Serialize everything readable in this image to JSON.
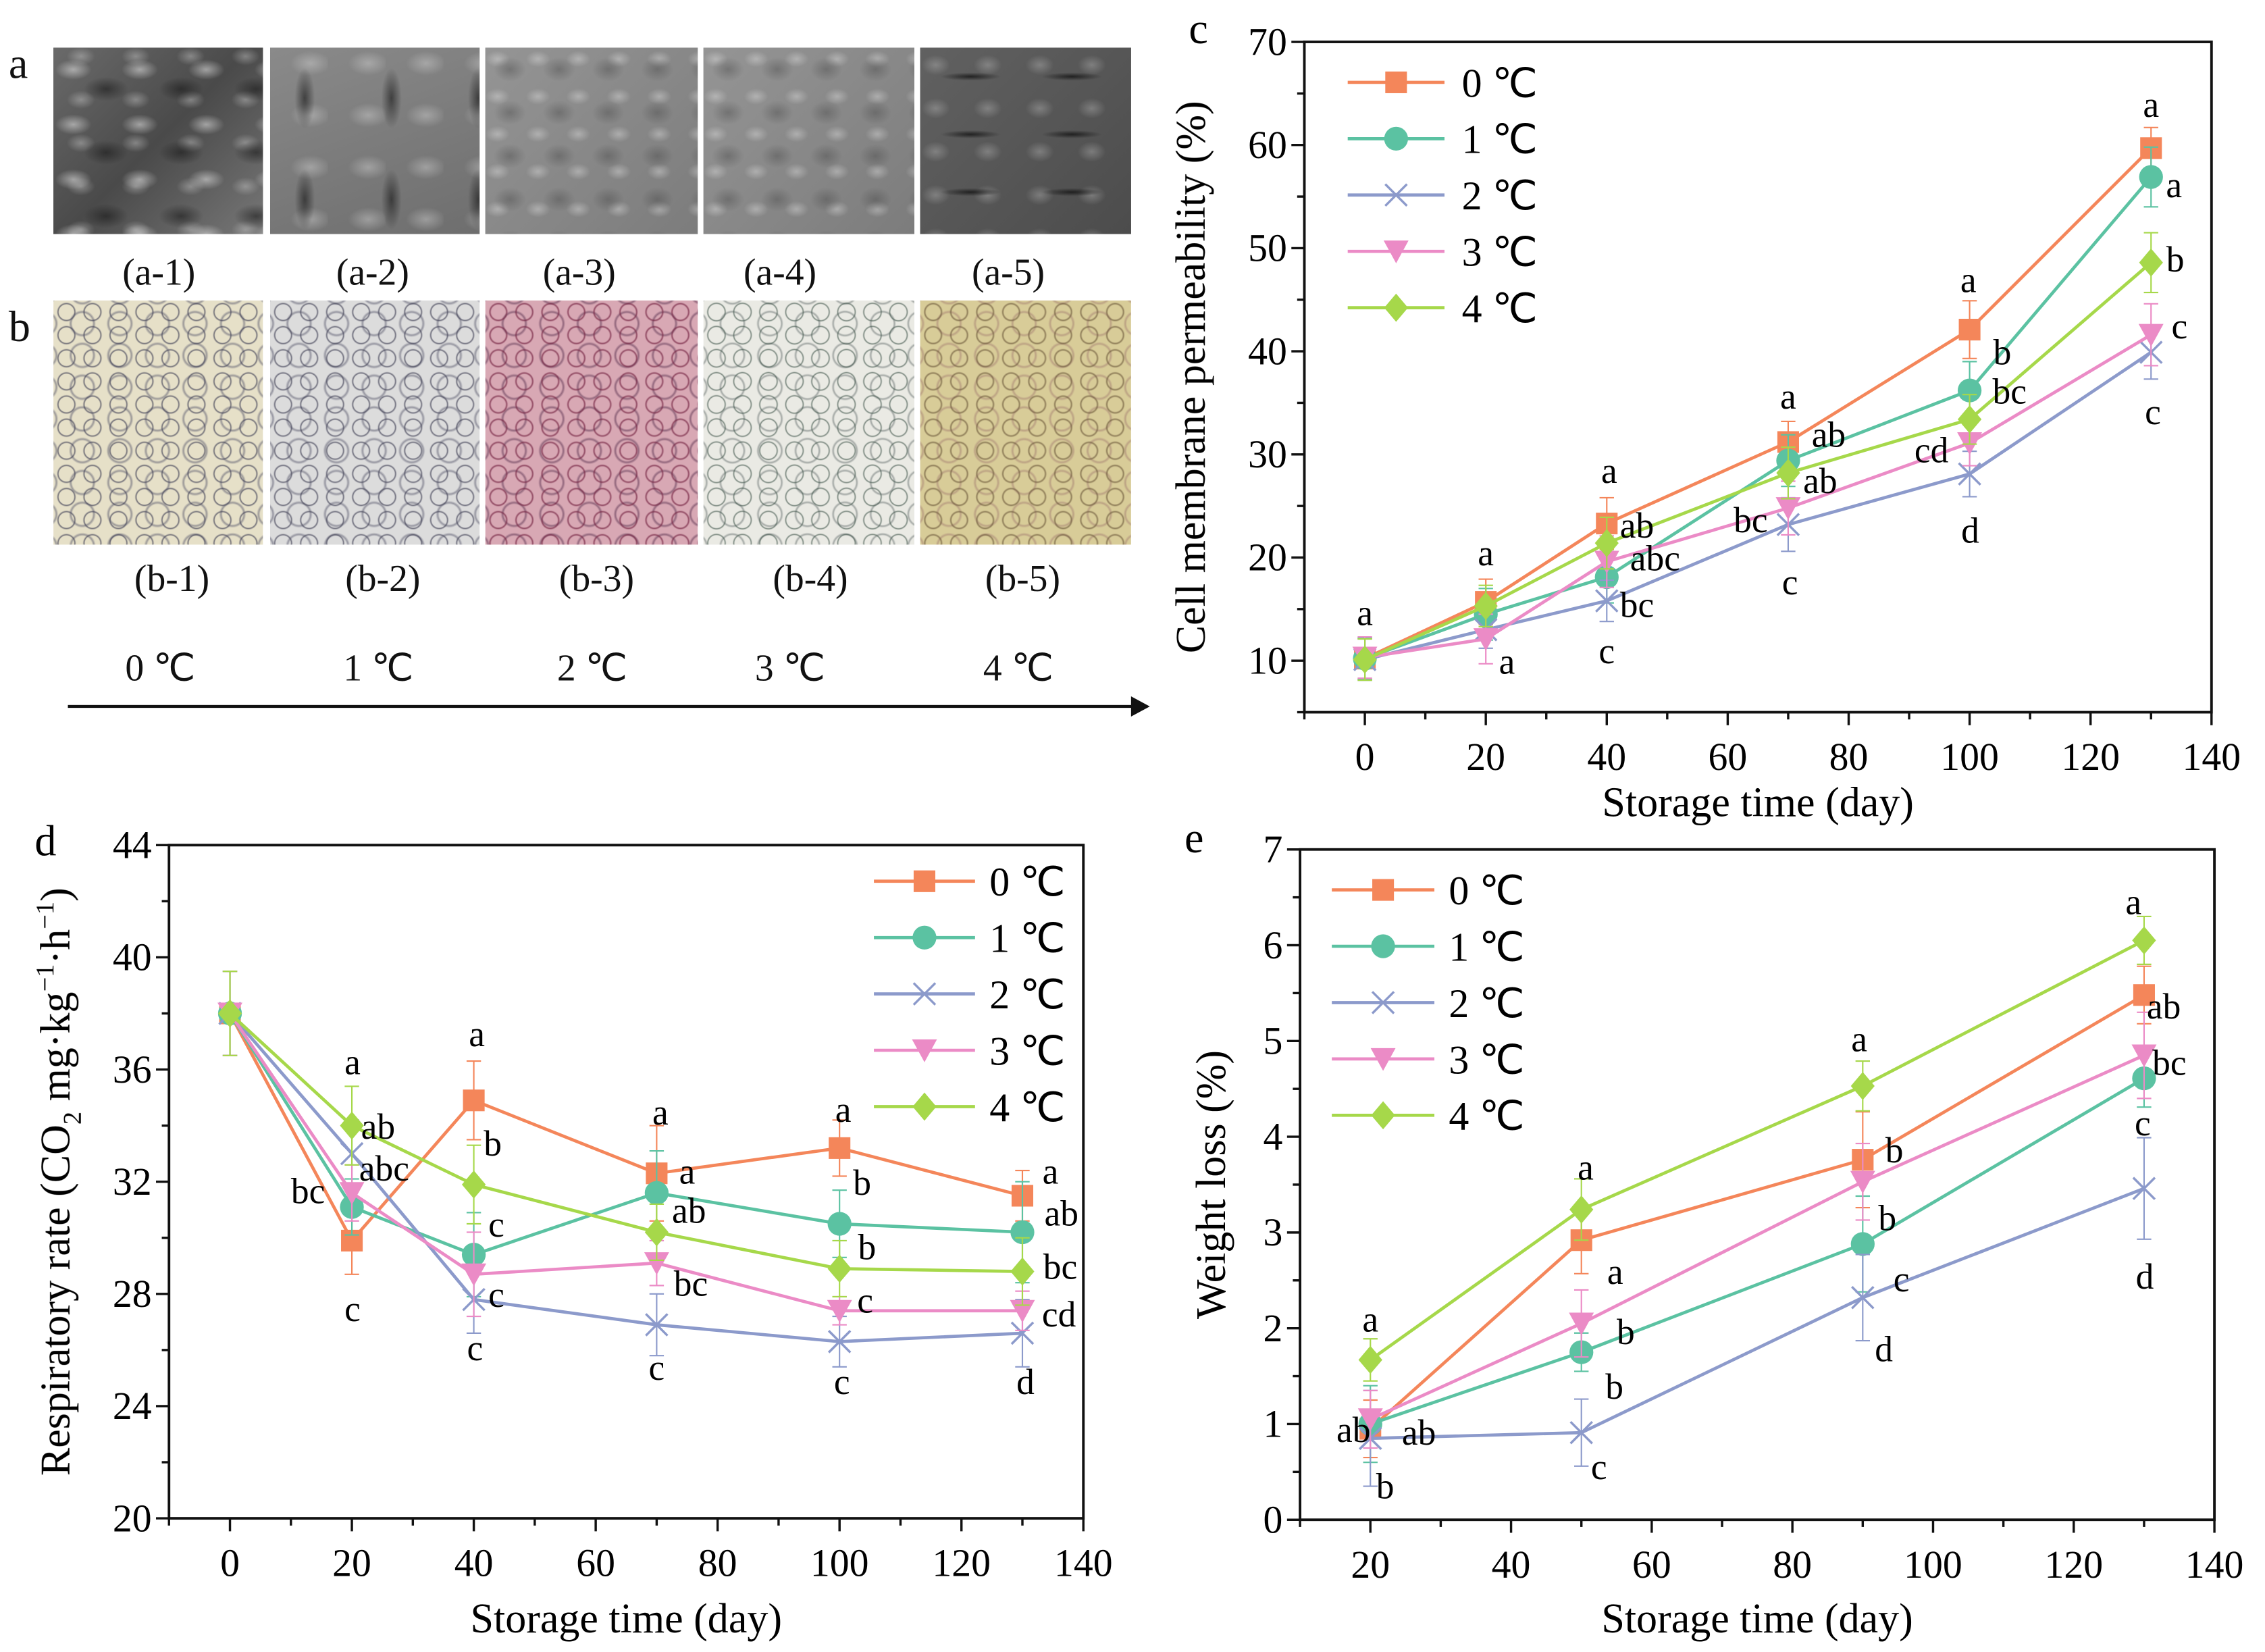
{
  "panel_a": {
    "letter": "a",
    "captions": [
      "(a-1)",
      "(a-2)",
      "(a-3)",
      "(a-4)",
      "(a-5)"
    ]
  },
  "panel_b": {
    "letter": "b",
    "captions": [
      "(b-1)",
      "(b-2)",
      "(b-3)",
      "(b-4)",
      "(b-5)"
    ],
    "temperatures": [
      "0 ℃",
      "1 ℃",
      "2 ℃",
      "3 ℃",
      "4 ℃"
    ]
  },
  "colors": {
    "0 ℃": "#F4865A",
    "1 ℃": "#5BC2A2",
    "2 ℃": "#8C9ACB",
    "3 ℃": "#EB8BC6",
    "4 ℃": "#A6D84A"
  },
  "chart_data": [
    {
      "panel": "c",
      "type": "line",
      "xlabel": "Storage time (day)",
      "ylabel": "Cell membrane permeability (%)",
      "xlim": [
        -10,
        140
      ],
      "ylim": [
        5,
        70
      ],
      "xticks": [
        0,
        20,
        40,
        60,
        80,
        100,
        120,
        140
      ],
      "yticks": [
        10,
        20,
        30,
        40,
        50,
        60,
        70
      ],
      "grid": false,
      "legend": "top-left",
      "x": [
        0,
        20,
        40,
        70,
        100,
        130
      ],
      "series": [
        {
          "name": "0 ℃",
          "marker": "square",
          "values": [
            10.2,
            15.7,
            23.3,
            31.2,
            42.1,
            59.7
          ],
          "error": [
            2,
            2.2,
            2.5,
            2,
            2.8,
            2
          ]
        },
        {
          "name": "1 ℃",
          "marker": "circle",
          "values": [
            10.2,
            14.5,
            18.1,
            29.4,
            36.2,
            56.9
          ],
          "error": [
            2,
            2.5,
            2.5,
            2.5,
            2.8,
            2.9
          ]
        },
        {
          "name": "2 ℃",
          "marker": "x",
          "values": [
            10.1,
            13.0,
            15.8,
            23.2,
            28.1,
            39.9
          ],
          "error": [
            2,
            1.8,
            2,
            2.6,
            2.2,
            2.6
          ]
        },
        {
          "name": "3 ℃",
          "marker": "triangle-down",
          "values": [
            10.3,
            12.1,
            19.6,
            24.8,
            31.1,
            41.6
          ],
          "error": [
            2,
            2.4,
            2.5,
            2.6,
            2.2,
            3
          ]
        },
        {
          "name": "4 ℃",
          "marker": "diamond",
          "values": [
            10.1,
            15.3,
            21.4,
            28.2,
            33.4,
            48.6
          ],
          "error": [
            2,
            2,
            2.5,
            2.5,
            2.4,
            2.9
          ]
        }
      ],
      "annotations": [
        {
          "x": 0,
          "y": 14.7,
          "text": "a"
        },
        {
          "x": 20,
          "y": 20.5,
          "text": "a"
        },
        {
          "x": 23.5,
          "y": 10,
          "text": "a"
        },
        {
          "x": 40.4,
          "y": 28.5,
          "text": "a"
        },
        {
          "x": 45,
          "y": 23.2,
          "text": "ab"
        },
        {
          "x": 48,
          "y": 20,
          "text": "abc"
        },
        {
          "x": 45,
          "y": 15.5,
          "text": "bc"
        },
        {
          "x": 40,
          "y": 11,
          "text": "c"
        },
        {
          "x": 70,
          "y": 35.7,
          "text": "a"
        },
        {
          "x": 76.7,
          "y": 32,
          "text": "ab"
        },
        {
          "x": 75.3,
          "y": 27.5,
          "text": "ab"
        },
        {
          "x": 63.8,
          "y": 23.7,
          "text": "bc"
        },
        {
          "x": 70.3,
          "y": 17.7,
          "text": "c"
        },
        {
          "x": 99.8,
          "y": 47,
          "text": "a"
        },
        {
          "x": 105.4,
          "y": 40,
          "text": "b"
        },
        {
          "x": 106.6,
          "y": 36.2,
          "text": "bc"
        },
        {
          "x": 93.7,
          "y": 30.5,
          "text": "cd"
        },
        {
          "x": 100.1,
          "y": 22.7,
          "text": "d"
        },
        {
          "x": 130,
          "y": 64,
          "text": "a"
        },
        {
          "x": 133.8,
          "y": 56.2,
          "text": "a"
        },
        {
          "x": 134,
          "y": 49,
          "text": "b"
        },
        {
          "x": 134.7,
          "y": 42.5,
          "text": "c"
        },
        {
          "x": 130.3,
          "y": 34.2,
          "text": "c"
        }
      ]
    },
    {
      "panel": "d",
      "type": "line",
      "xlabel": "Storage time (day)",
      "ylabel_parts": [
        "Respiratory rate (CO",
        "2",
        "  mg·kg",
        "−1",
        "·h",
        "−1",
        ")"
      ],
      "xlim": [
        -10,
        140
      ],
      "ylim": [
        20,
        44
      ],
      "xticks": [
        0,
        20,
        40,
        60,
        80,
        100,
        120,
        140
      ],
      "yticks": [
        20,
        24,
        28,
        32,
        36,
        40,
        44
      ],
      "grid": false,
      "legend": "top-right",
      "x": [
        0,
        20,
        40,
        70,
        100,
        130
      ],
      "series": [
        {
          "name": "0 ℃",
          "marker": "square",
          "values": [
            38.0,
            29.9,
            34.9,
            32.3,
            33.2,
            31.5
          ],
          "error": [
            1.5,
            1.2,
            1.4,
            1.7,
            1,
            0.9
          ]
        },
        {
          "name": "1 ℃",
          "marker": "circle",
          "values": [
            38.0,
            31.1,
            29.4,
            31.6,
            30.5,
            30.2
          ],
          "error": [
            1.5,
            1,
            1.5,
            1.5,
            1.2,
            1.8
          ]
        },
        {
          "name": "2 ℃",
          "marker": "x",
          "values": [
            38.0,
            33.0,
            27.8,
            26.9,
            26.3,
            26.6
          ],
          "error": [
            1.5,
            1.2,
            1.2,
            1.1,
            0.9,
            1.2
          ]
        },
        {
          "name": "3 ℃",
          "marker": "triangle-down",
          "values": [
            38.0,
            31.6,
            28.7,
            29.1,
            27.4,
            27.4
          ],
          "error": [
            1.5,
            1,
            1.5,
            0.8,
            0.5,
            0.7
          ]
        },
        {
          "name": "4 ℃",
          "marker": "diamond",
          "values": [
            38.0,
            34.0,
            31.9,
            30.2,
            28.9,
            28.8
          ],
          "error": [
            1.5,
            1.4,
            1.4,
            1,
            1,
            1.2
          ]
        }
      ],
      "annotations": [
        {
          "x": 20.1,
          "y": 36.3,
          "text": "a"
        },
        {
          "x": 24.3,
          "y": 34.0,
          "text": "ab"
        },
        {
          "x": 25.3,
          "y": 32.5,
          "text": "abc"
        },
        {
          "x": 12.8,
          "y": 31.7,
          "text": "bc"
        },
        {
          "x": 20.1,
          "y": 27.5,
          "text": "c"
        },
        {
          "x": 40.5,
          "y": 37.3,
          "text": "a"
        },
        {
          "x": 43.1,
          "y": 33.4,
          "text": "b"
        },
        {
          "x": 43.7,
          "y": 30.5,
          "text": "c"
        },
        {
          "x": 43.7,
          "y": 28.0,
          "text": "c"
        },
        {
          "x": 40.2,
          "y": 26.1,
          "text": "c"
        },
        {
          "x": 70.6,
          "y": 34.5,
          "text": "a"
        },
        {
          "x": 75,
          "y": 32.4,
          "text": "a"
        },
        {
          "x": 75.3,
          "y": 31.0,
          "text": "ab"
        },
        {
          "x": 75.6,
          "y": 28.4,
          "text": "bc"
        },
        {
          "x": 70,
          "y": 25.4,
          "text": "c"
        },
        {
          "x": 100.6,
          "y": 34.6,
          "text": "a"
        },
        {
          "x": 103.7,
          "y": 32.0,
          "text": "b"
        },
        {
          "x": 104.5,
          "y": 29.7,
          "text": "b"
        },
        {
          "x": 104.2,
          "y": 27.8,
          "text": "c"
        },
        {
          "x": 100.4,
          "y": 24.9,
          "text": "c"
        },
        {
          "x": 134.6,
          "y": 32.4,
          "text": "a"
        },
        {
          "x": 136.4,
          "y": 30.9,
          "text": "ab"
        },
        {
          "x": 136.2,
          "y": 29.0,
          "text": "bc"
        },
        {
          "x": 136,
          "y": 27.3,
          "text": "cd"
        },
        {
          "x": 130.5,
          "y": 24.9,
          "text": "d"
        }
      ]
    },
    {
      "panel": "e",
      "type": "line",
      "xlabel": "Storage time (day)",
      "ylabel": "Weight loss (%)",
      "xlim": [
        10,
        140
      ],
      "ylim": [
        0,
        7
      ],
      "xticks": [
        20,
        40,
        60,
        80,
        100,
        120,
        140
      ],
      "yticks": [
        0,
        1,
        2,
        3,
        4,
        5,
        6,
        7
      ],
      "grid": false,
      "legend": "top-left",
      "x": [
        20,
        50,
        90,
        130
      ],
      "series": [
        {
          "name": "0 ℃",
          "marker": "square",
          "values": [
            0.95,
            2.92,
            3.76,
            5.48
          ],
          "error": [
            0.3,
            0.35,
            0.5,
            0.3
          ]
        },
        {
          "name": "1 ℃",
          "marker": "circle",
          "values": [
            1.0,
            1.75,
            2.88,
            4.61
          ],
          "error": [
            0.4,
            0.2,
            0.5,
            0.3
          ]
        },
        {
          "name": "2 ℃",
          "marker": "x",
          "values": [
            0.85,
            0.91,
            2.32,
            3.46
          ],
          "error": [
            0.5,
            0.35,
            0.45,
            0.53
          ]
        },
        {
          "name": "3 ℃",
          "marker": "triangle-down",
          "values": [
            1.05,
            2.05,
            3.53,
            4.85
          ],
          "error": [
            0.3,
            0.35,
            0.4,
            0.45
          ]
        },
        {
          "name": "4 ℃",
          "marker": "diamond",
          "values": [
            1.67,
            3.24,
            4.53,
            6.05
          ],
          "error": [
            0.22,
            0.32,
            0.26,
            0.25
          ]
        }
      ],
      "annotations": [
        {
          "x": 20,
          "y": 2.1,
          "text": "a"
        },
        {
          "x": 17.6,
          "y": 0.95,
          "text": "ab"
        },
        {
          "x": 26.9,
          "y": 0.92,
          "text": "ab"
        },
        {
          "x": 22.1,
          "y": 0.36,
          "text": "b"
        },
        {
          "x": 50.6,
          "y": 3.69,
          "text": "a"
        },
        {
          "x": 54.8,
          "y": 2.6,
          "text": "a"
        },
        {
          "x": 56.3,
          "y": 1.97,
          "text": "b"
        },
        {
          "x": 54.7,
          "y": 1.4,
          "text": "b"
        },
        {
          "x": 52.5,
          "y": 0.56,
          "text": "c"
        },
        {
          "x": 89.5,
          "y": 5.03,
          "text": "a"
        },
        {
          "x": 94.5,
          "y": 3.87,
          "text": "b"
        },
        {
          "x": 93.5,
          "y": 3.16,
          "text": "b"
        },
        {
          "x": 95.5,
          "y": 2.52,
          "text": "c"
        },
        {
          "x": 93,
          "y": 1.79,
          "text": "d"
        },
        {
          "x": 128.5,
          "y": 6.46,
          "text": "a"
        },
        {
          "x": 132.8,
          "y": 5.37,
          "text": "ab"
        },
        {
          "x": 133.6,
          "y": 4.78,
          "text": "bc"
        },
        {
          "x": 129.8,
          "y": 4.15,
          "text": "c"
        },
        {
          "x": 130.1,
          "y": 2.55,
          "text": "d"
        }
      ]
    }
  ]
}
